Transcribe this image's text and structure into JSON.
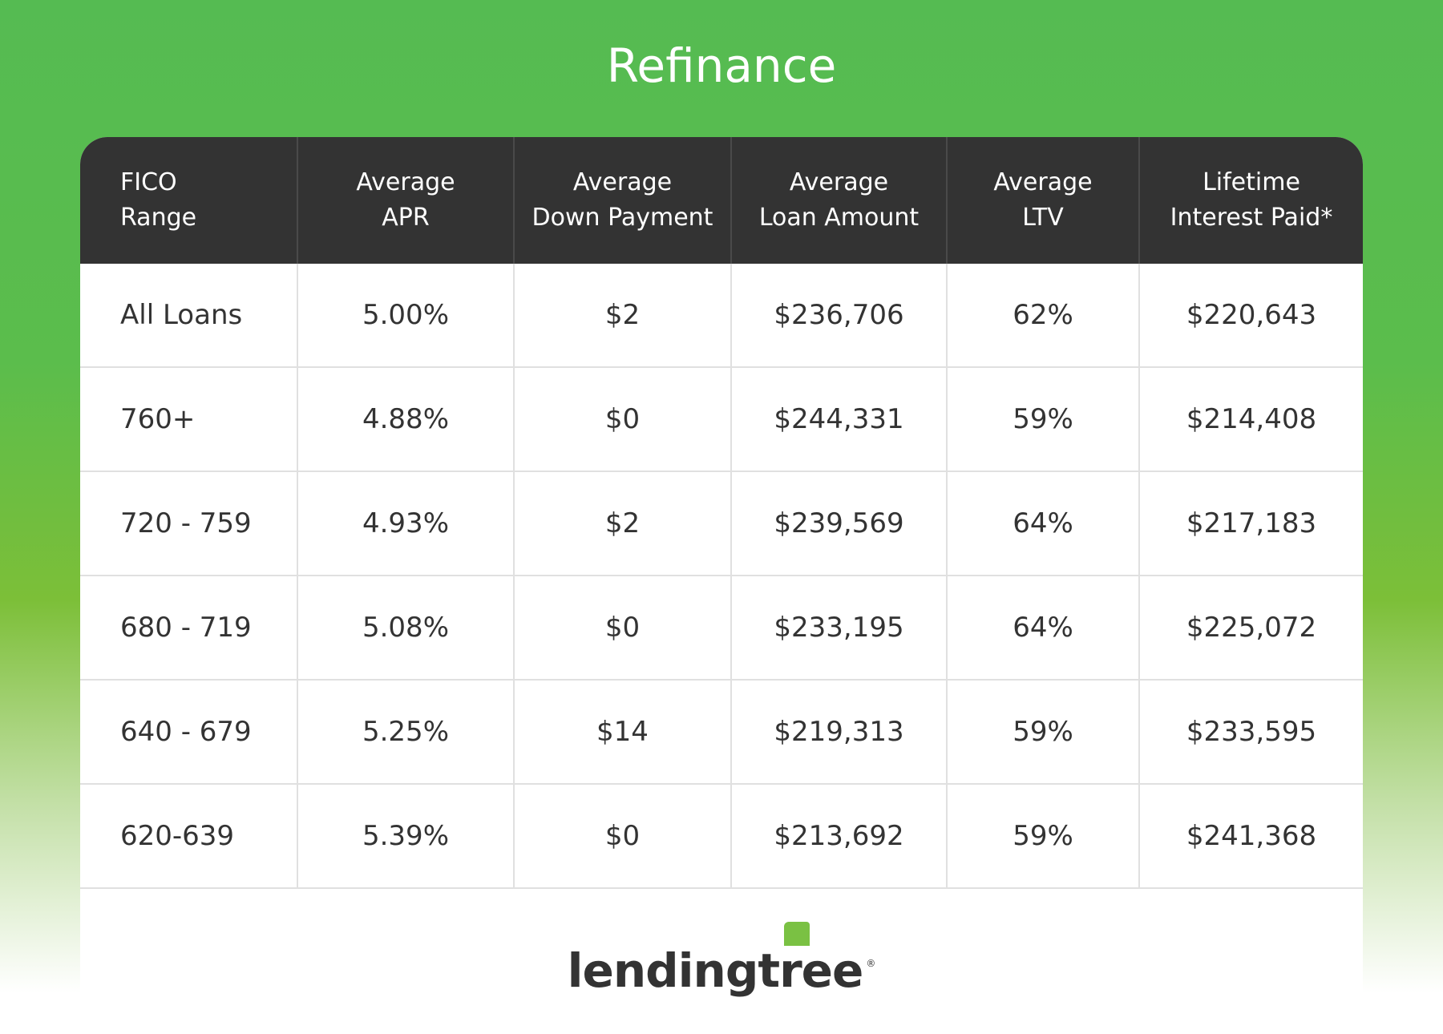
{
  "title": "Refinance",
  "columns": [
    [
      "FICO",
      "Range"
    ],
    [
      "Average",
      "APR"
    ],
    [
      "Average",
      "Down Payment"
    ],
    [
      "Average",
      "Loan Amount"
    ],
    [
      "Average",
      "LTV"
    ],
    [
      "Lifetime",
      "Interest Paid*"
    ]
  ],
  "rows": [
    [
      "All Loans",
      "5.00%",
      "$2",
      "$236,706",
      "62%",
      "$220,643"
    ],
    [
      "760+",
      "4.88%",
      "$0",
      "$244,331",
      "59%",
      "$214,408"
    ],
    [
      "720 - 759",
      "4.93%",
      "$2",
      "$239,569",
      "64%",
      "$217,183"
    ],
    [
      "680 - 719",
      "5.08%",
      "$0",
      "$233,195",
      "64%",
      "$225,072"
    ],
    [
      "640 - 679",
      "5.25%",
      "$14",
      "$219,313",
      "59%",
      "$233,595"
    ],
    [
      "620-639",
      "5.39%",
      "$0",
      "$213,692",
      "59%",
      "$241,368"
    ]
  ],
  "logo": {
    "text": "lendingtree",
    "mark": "®",
    "leaf_color": "#7ac143",
    "text_color": "#333333"
  }
}
